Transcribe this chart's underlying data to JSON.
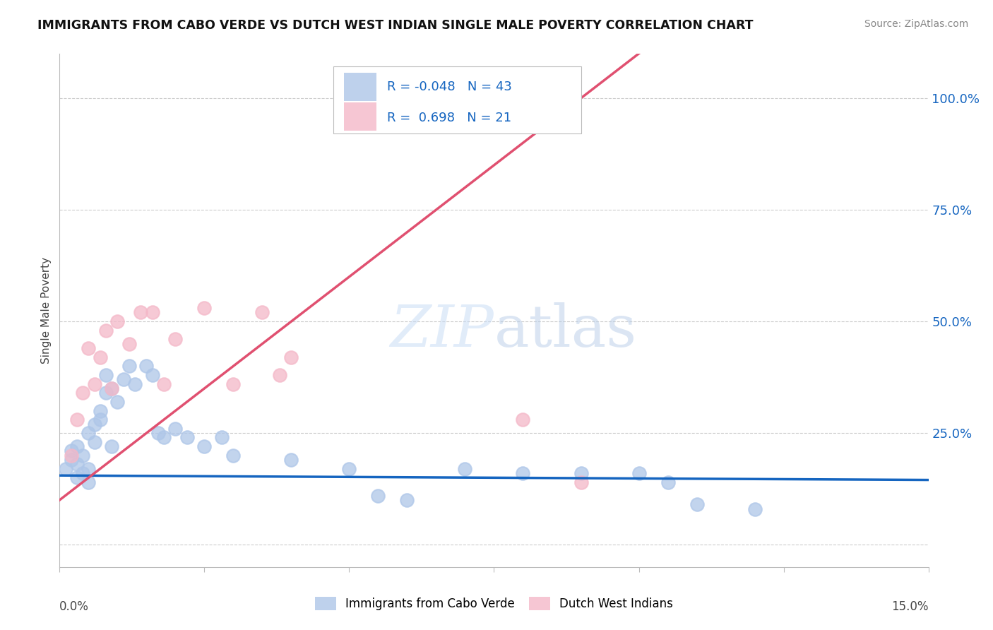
{
  "title": "IMMIGRANTS FROM CABO VERDE VS DUTCH WEST INDIAN SINGLE MALE POVERTY CORRELATION CHART",
  "source": "Source: ZipAtlas.com",
  "ylabel": "Single Male Poverty",
  "legend_label1": "Immigrants from Cabo Verde",
  "legend_label2": "Dutch West Indians",
  "R1": "-0.048",
  "N1": "43",
  "R2": "0.698",
  "N2": "21",
  "blue_color": "#aec6e8",
  "pink_color": "#f4b8c8",
  "blue_line_color": "#1565C0",
  "pink_line_color": "#e05070",
  "cabo_verde_x": [
    0.001,
    0.002,
    0.002,
    0.003,
    0.003,
    0.003,
    0.004,
    0.004,
    0.005,
    0.005,
    0.005,
    0.006,
    0.006,
    0.007,
    0.007,
    0.008,
    0.008,
    0.009,
    0.009,
    0.01,
    0.011,
    0.012,
    0.013,
    0.015,
    0.016,
    0.017,
    0.018,
    0.02,
    0.022,
    0.025,
    0.028,
    0.03,
    0.04,
    0.05,
    0.055,
    0.06,
    0.07,
    0.08,
    0.09,
    0.1,
    0.105,
    0.11,
    0.12
  ],
  "cabo_verde_y": [
    0.17,
    0.19,
    0.21,
    0.15,
    0.18,
    0.22,
    0.16,
    0.2,
    0.14,
    0.17,
    0.25,
    0.23,
    0.27,
    0.3,
    0.28,
    0.34,
    0.38,
    0.35,
    0.22,
    0.32,
    0.37,
    0.4,
    0.36,
    0.4,
    0.38,
    0.25,
    0.24,
    0.26,
    0.24,
    0.22,
    0.24,
    0.2,
    0.19,
    0.17,
    0.11,
    0.1,
    0.17,
    0.16,
    0.16,
    0.16,
    0.14,
    0.09,
    0.08
  ],
  "dutch_x": [
    0.002,
    0.003,
    0.004,
    0.005,
    0.006,
    0.007,
    0.008,
    0.009,
    0.01,
    0.012,
    0.014,
    0.016,
    0.018,
    0.02,
    0.025,
    0.03,
    0.035,
    0.038,
    0.04,
    0.08,
    0.09
  ],
  "dutch_y": [
    0.2,
    0.28,
    0.34,
    0.44,
    0.36,
    0.42,
    0.48,
    0.35,
    0.5,
    0.45,
    0.52,
    0.52,
    0.36,
    0.46,
    0.53,
    0.36,
    0.52,
    0.38,
    0.42,
    0.28,
    0.14
  ],
  "blue_trend_x": [
    0.0,
    0.15
  ],
  "blue_trend_y": [
    0.155,
    0.145
  ],
  "pink_trend_x": [
    0.0,
    0.09
  ],
  "pink_trend_y": [
    0.1,
    1.0
  ],
  "xlim": [
    0.0,
    0.15
  ],
  "ylim": [
    -0.05,
    1.1
  ],
  "ytick_positions": [
    0.0,
    0.25,
    0.5,
    0.75,
    1.0
  ],
  "ytick_labels": [
    "",
    "25.0%",
    "50.0%",
    "75.0%",
    "100.0%"
  ],
  "background_color": "#ffffff",
  "grid_color": "#cccccc"
}
